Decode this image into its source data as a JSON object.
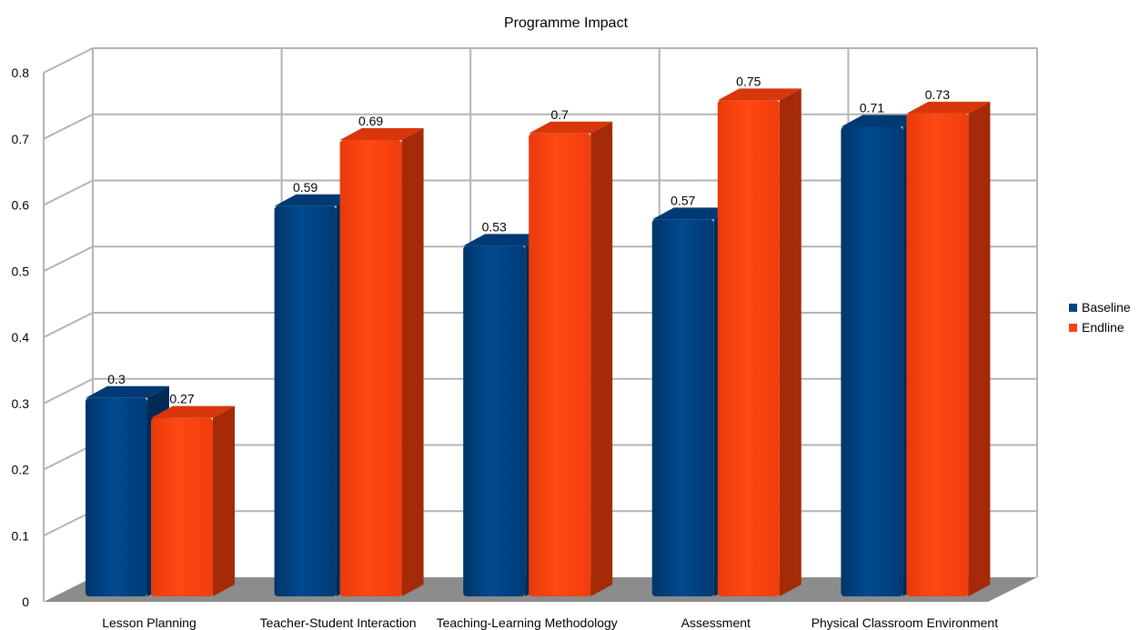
{
  "chart_data": {
    "type": "bar",
    "title": "Programme Impact",
    "xlabel": "",
    "ylabel": "",
    "ylim": [
      0,
      0.8
    ],
    "y_ticks": [
      "0",
      "0.1",
      "0.2",
      "0.3",
      "0.4",
      "0.5",
      "0.6",
      "0.7",
      "0.8"
    ],
    "categories": [
      "Lesson Planning",
      "Teacher-Student Interaction",
      "Teaching-Learning Methodology",
      "Assessment",
      "Physical Classroom Environment"
    ],
    "series": [
      {
        "name": "Baseline",
        "values": [
          0.3,
          0.59,
          0.53,
          0.57,
          0.71
        ],
        "labels": [
          "0.3",
          "0.59",
          "0.53",
          "0.57",
          "0.71"
        ],
        "color": "#004586"
      },
      {
        "name": "Endline",
        "values": [
          0.27,
          0.69,
          0.7,
          0.75,
          0.73
        ],
        "labels": [
          "0.27",
          "0.69",
          "0.7",
          "0.75",
          "0.73"
        ],
        "color": "#ff420e"
      }
    ],
    "grid": true,
    "legend_position": "right",
    "style": "3d"
  }
}
